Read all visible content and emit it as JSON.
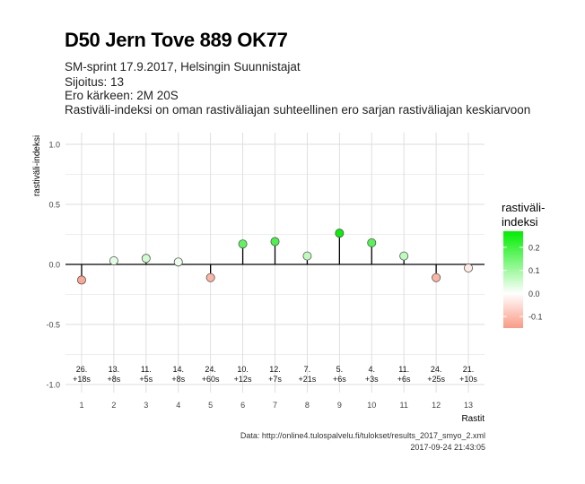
{
  "header": {
    "title": "D50 Jern Tove 889 OK77",
    "subtitle_lines": [
      "SM-sprint 17.9.2017, Helsingin Suunnistajat",
      "Sijoitus: 13",
      "Ero kärkeen: 2M 20S",
      "Rastiväli-indeksi on oman rastiväliajan suhteellinen ero sarjan rastiväliajan keskiarvoon"
    ]
  },
  "caption": {
    "source": "Data: http://online4.tulospalvelu.fi/tulokset/results_2017_smyo_2.xml",
    "timestamp": "2017-09-24 21:43:05"
  },
  "chart_data": {
    "type": "scatter",
    "title": "D50 Jern Tove 889 OK77",
    "xlabel": "Rastit",
    "ylabel": "rastiväli-indeksi",
    "xlim": [
      0.5,
      13.5
    ],
    "ylim": [
      -1.0,
      1.0
    ],
    "x_ticks": [
      1,
      2,
      3,
      4,
      5,
      6,
      7,
      8,
      9,
      10,
      11,
      12,
      13
    ],
    "y_ticks": [
      -1.0,
      -0.5,
      0.0,
      0.5,
      1.0
    ],
    "y_tick_labels": [
      "-1.0",
      "-0.5",
      "0.0",
      "0.5",
      "1.0"
    ],
    "grid": true,
    "points": [
      {
        "x": 1,
        "y": -0.13,
        "rank": "26.",
        "diff": "+18s"
      },
      {
        "x": 2,
        "y": 0.03,
        "rank": "13.",
        "diff": "+8s"
      },
      {
        "x": 3,
        "y": 0.05,
        "rank": "11.",
        "diff": "+5s"
      },
      {
        "x": 4,
        "y": 0.02,
        "rank": "14.",
        "diff": "+8s"
      },
      {
        "x": 5,
        "y": -0.11,
        "rank": "24.",
        "diff": "+60s"
      },
      {
        "x": 6,
        "y": 0.17,
        "rank": "10.",
        "diff": "+12s"
      },
      {
        "x": 7,
        "y": 0.19,
        "rank": "12.",
        "diff": "+7s"
      },
      {
        "x": 8,
        "y": 0.07,
        "rank": "7.",
        "diff": "+21s"
      },
      {
        "x": 9,
        "y": 0.26,
        "rank": "5.",
        "diff": "+6s"
      },
      {
        "x": 10,
        "y": 0.18,
        "rank": "4.",
        "diff": "+3s"
      },
      {
        "x": 11,
        "y": 0.07,
        "rank": "11.",
        "diff": "+6s"
      },
      {
        "x": 12,
        "y": -0.11,
        "rank": "24.",
        "diff": "+25s"
      },
      {
        "x": 13,
        "y": -0.03,
        "rank": "21.",
        "diff": "+10s"
      }
    ],
    "legend": {
      "title_lines": [
        "rastiväli-",
        "indeksi"
      ],
      "position": "right",
      "range": [
        -0.15,
        0.27
      ],
      "ticks": [
        -0.1,
        0.0,
        0.1,
        0.2
      ],
      "tick_labels": [
        "-0.1",
        "0.0",
        "0.1",
        "0.2"
      ]
    },
    "colors": {
      "low": "#fa9a84",
      "mid": "#ffffff",
      "high": "#00ee00",
      "grid": "#dcdcdc",
      "baseline": "#000000"
    }
  }
}
